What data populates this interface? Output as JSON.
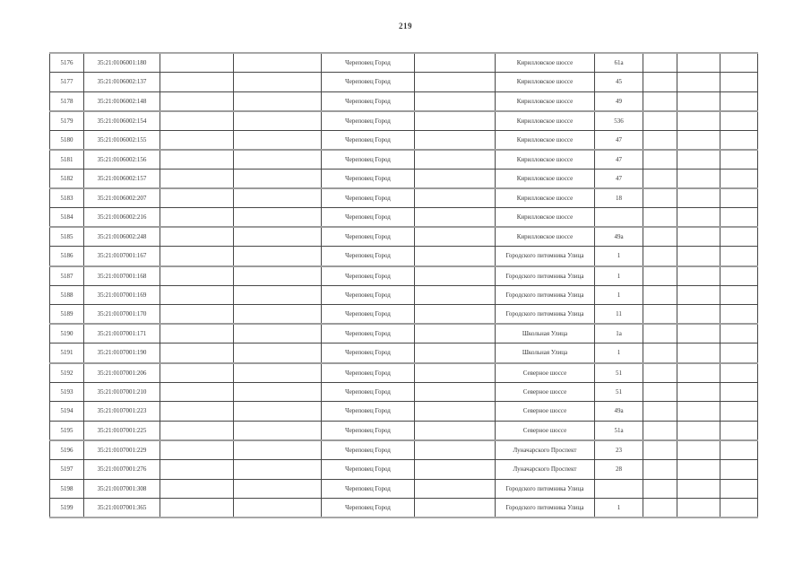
{
  "page": {
    "number": "219"
  },
  "colors": {
    "grid_line": "#474747",
    "thick_line": "#9b9b9b",
    "text": "#363636",
    "background": "#ffffff"
  },
  "table": {
    "thick_top_rows": [
      "5179",
      "5181",
      "5183",
      "5185",
      "5187",
      "5190",
      "5192",
      "5196"
    ],
    "rows": [
      {
        "cells": [
          "5176",
          "35:21:0106001:180",
          "",
          "",
          "Череповец Город",
          "",
          "Кирилловское шоссе",
          "61а",
          "",
          "",
          ""
        ]
      },
      {
        "cells": [
          "5177",
          "35:21:0106002:137",
          "",
          "",
          "Череповец Город",
          "",
          "Кирилловское шоссе",
          "45",
          "",
          "",
          ""
        ]
      },
      {
        "cells": [
          "5178",
          "35:21:0106002:148",
          "",
          "",
          "Череповец Город",
          "",
          "Кирилловское шоссе",
          "49",
          "",
          "",
          ""
        ]
      },
      {
        "cells": [
          "5179",
          "35:21:0106002:154",
          "",
          "",
          "Череповец Город",
          "",
          "Кирилловское шоссе",
          "536",
          "",
          "",
          ""
        ]
      },
      {
        "cells": [
          "5180",
          "35:21:0106002:155",
          "",
          "",
          "Череповец Город",
          "",
          "Кирилловское шоссе",
          "47",
          "",
          "",
          ""
        ]
      },
      {
        "cells": [
          "5181",
          "35:21:0106002:156",
          "",
          "",
          "Череповец Город",
          "",
          "Кирилловское шоссе",
          "47",
          "",
          "",
          ""
        ]
      },
      {
        "cells": [
          "5182",
          "35:21:0106002:157",
          "",
          "",
          "Череповец Город",
          "",
          "Кирилловское шоссе",
          "47",
          "",
          "",
          ""
        ]
      },
      {
        "cells": [
          "5183",
          "35:21:0106002:207",
          "",
          "",
          "Череповец Город",
          "",
          "Кирилловское шоссе",
          "18",
          "",
          "",
          ""
        ]
      },
      {
        "cells": [
          "5184",
          "35:21:0106002:216",
          "",
          "",
          "Череповец Город",
          "",
          "Кирилловское шоссе",
          "",
          "",
          "",
          ""
        ]
      },
      {
        "cells": [
          "5185",
          "35:21:0106002:248",
          "",
          "",
          "Череповец Город",
          "",
          "Кирилловское шоссе",
          "49а",
          "",
          "",
          ""
        ]
      },
      {
        "cells": [
          "5186",
          "35:21:0107001:167",
          "",
          "",
          "Череповец Город",
          "",
          "Городского питомника Улица",
          "1",
          "",
          "",
          ""
        ]
      },
      {
        "cells": [
          "5187",
          "35:21:0107001:168",
          "",
          "",
          "Череповец Город",
          "",
          "Городского питомника Улица",
          "1",
          "",
          "",
          ""
        ]
      },
      {
        "cells": [
          "5188",
          "35:21:0107001:169",
          "",
          "",
          "Череповец Город",
          "",
          "Городского питомника Улица",
          "1",
          "",
          "",
          ""
        ]
      },
      {
        "cells": [
          "5189",
          "35:21:0107001:170",
          "",
          "",
          "Череповец Город",
          "",
          "Городского питомника Улица",
          "11",
          "",
          "",
          ""
        ]
      },
      {
        "cells": [
          "5190",
          "35:21:0107001:171",
          "",
          "",
          "Череповец Город",
          "",
          "Школьная Улица",
          "1а",
          "",
          "",
          ""
        ]
      },
      {
        "cells": [
          "5191",
          "35:21:0107001:190",
          "",
          "",
          "Череповец Город",
          "",
          "Школьная Улица",
          "1",
          "",
          "",
          ""
        ]
      },
      {
        "cells": [
          "5192",
          "35:21:0107001:206",
          "",
          "",
          "Череповец Город",
          "",
          "Северное шоссе",
          "51",
          "",
          "",
          ""
        ]
      },
      {
        "cells": [
          "5193",
          "35:21:0107001:210",
          "",
          "",
          "Череповец Город",
          "",
          "Северное шоссе",
          "51",
          "",
          "",
          ""
        ]
      },
      {
        "cells": [
          "5194",
          "35:21:0107001:223",
          "",
          "",
          "Череповец Город",
          "",
          "Северное шоссе",
          "49а",
          "",
          "",
          ""
        ]
      },
      {
        "cells": [
          "5195",
          "35:21:0107001:225",
          "",
          "",
          "Череповец Город",
          "",
          "Северное шоссе",
          "51а",
          "",
          "",
          ""
        ]
      },
      {
        "cells": [
          "5196",
          "35:21:0107001:229",
          "",
          "",
          "Череповец Город",
          "",
          "Луначарского Проспект",
          "23",
          "",
          "",
          ""
        ]
      },
      {
        "cells": [
          "5197",
          "35:21:0107001:276",
          "",
          "",
          "Череповец Город",
          "",
          "Луначарского Проспект",
          "28",
          "",
          "",
          ""
        ]
      },
      {
        "cells": [
          "5198",
          "35:21:0107001:308",
          "",
          "",
          "Череповец Город",
          "",
          "Городского питомника Улица",
          "",
          "",
          "",
          ""
        ]
      },
      {
        "cells": [
          "5199",
          "35:21:0107001:365",
          "",
          "",
          "Череповец Город",
          "",
          "Городского питомника Улица",
          "1",
          "",
          "",
          ""
        ]
      }
    ]
  }
}
